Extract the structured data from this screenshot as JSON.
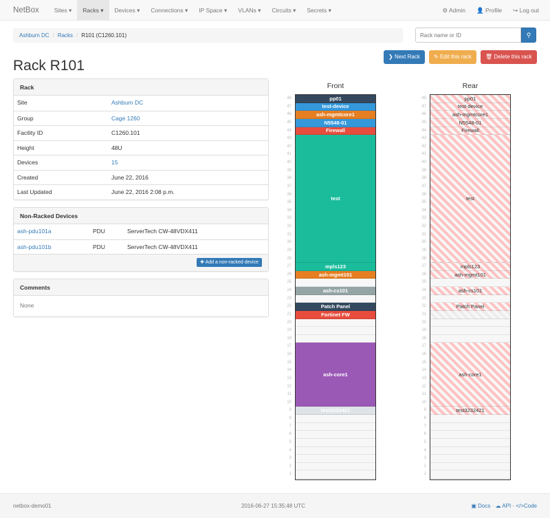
{
  "navbar": {
    "brand": "NetBox",
    "items": [
      "Sites",
      "Racks",
      "Devices",
      "Connections",
      "IP Space",
      "VLANs",
      "Circuits",
      "Secrets"
    ],
    "active": "Racks",
    "right": [
      {
        "icon": "gear-icon",
        "label": "Admin"
      },
      {
        "icon": "user-icon",
        "label": "Profile"
      },
      {
        "icon": "logout-icon",
        "label": "Log out"
      }
    ]
  },
  "breadcrumb": [
    "Ashburn DC",
    "Racks",
    "R101 (C1260.101)"
  ],
  "search": {
    "placeholder": "Rack name or ID",
    "icon": "search-icon"
  },
  "buttons": {
    "next": "Next Rack",
    "edit": "Edit this rack",
    "delete": "Delete this rack"
  },
  "title": "Rack R101",
  "rack_panel": {
    "heading": "Rack",
    "rows": [
      {
        "label": "Site",
        "value": "Ashburn DC",
        "link": true
      },
      {
        "label": "Group",
        "value": "Cage 1260",
        "link": true
      },
      {
        "label": "Facility ID",
        "value": "C1260.101",
        "link": false
      },
      {
        "label": "Height",
        "value": "48U",
        "link": false
      },
      {
        "label": "Devices",
        "value": "15",
        "link": true
      },
      {
        "label": "Created",
        "value": "June 22, 2016",
        "link": false
      },
      {
        "label": "Last Updated",
        "value": "June 22, 2016 2:08 p.m.",
        "link": false
      }
    ]
  },
  "nonracked": {
    "heading": "Non-Racked Devices",
    "rows": [
      {
        "name": "ash-pdu101a",
        "role": "PDU",
        "type": "ServerTech CW-48VDX411"
      },
      {
        "name": "ash-pdu101b",
        "role": "PDU",
        "type": "ServerTech CW-48VDX411"
      }
    ],
    "add_label": "Add a non-racked device"
  },
  "comments": {
    "heading": "Comments",
    "body": "None"
  },
  "rack": {
    "height": 48,
    "front_label": "Front",
    "rear_label": "Rear",
    "devices": [
      {
        "name": "pp01",
        "unit": 48,
        "size": 1,
        "color": "#34495e"
      },
      {
        "name": "test-device",
        "unit": 47,
        "size": 1,
        "color": "#3498db"
      },
      {
        "name": "ash-mgmtcore1",
        "unit": 46,
        "size": 1,
        "color": "#e67e22"
      },
      {
        "name": "N5548-01",
        "unit": 45,
        "size": 1,
        "color": "#3498db"
      },
      {
        "name": "Firewall",
        "unit": 44,
        "size": 1,
        "color": "#e74c3c"
      },
      {
        "name": "test",
        "unit": 28,
        "size": 16,
        "color": "#1abc9c"
      },
      {
        "name": "mpls123",
        "unit": 27,
        "size": 1,
        "color": "#1abc9c"
      },
      {
        "name": "ash-mgmt101",
        "unit": 26,
        "size": 1,
        "color": "#e67e22"
      },
      {
        "name": "ash-cs101",
        "unit": 24,
        "size": 1,
        "color": "#95a5a6"
      },
      {
        "name": "Patch Panel",
        "unit": 22,
        "size": 1,
        "color": "#34495e"
      },
      {
        "name": "Fortinet FW",
        "unit": 21,
        "size": 1,
        "color": "#e74c3c",
        "rear": "faint"
      },
      {
        "name": "ash-core1",
        "unit": 10,
        "size": 8,
        "color": "#9b59b6"
      },
      {
        "name": "test3232421",
        "unit": 9,
        "size": 1,
        "color": "#dde3e6"
      }
    ]
  },
  "footer": {
    "hostname": "netbox-demo01",
    "timestamp": "2016-06-27 15:35:48 UTC",
    "links": [
      "Docs",
      "API",
      "Code"
    ]
  }
}
